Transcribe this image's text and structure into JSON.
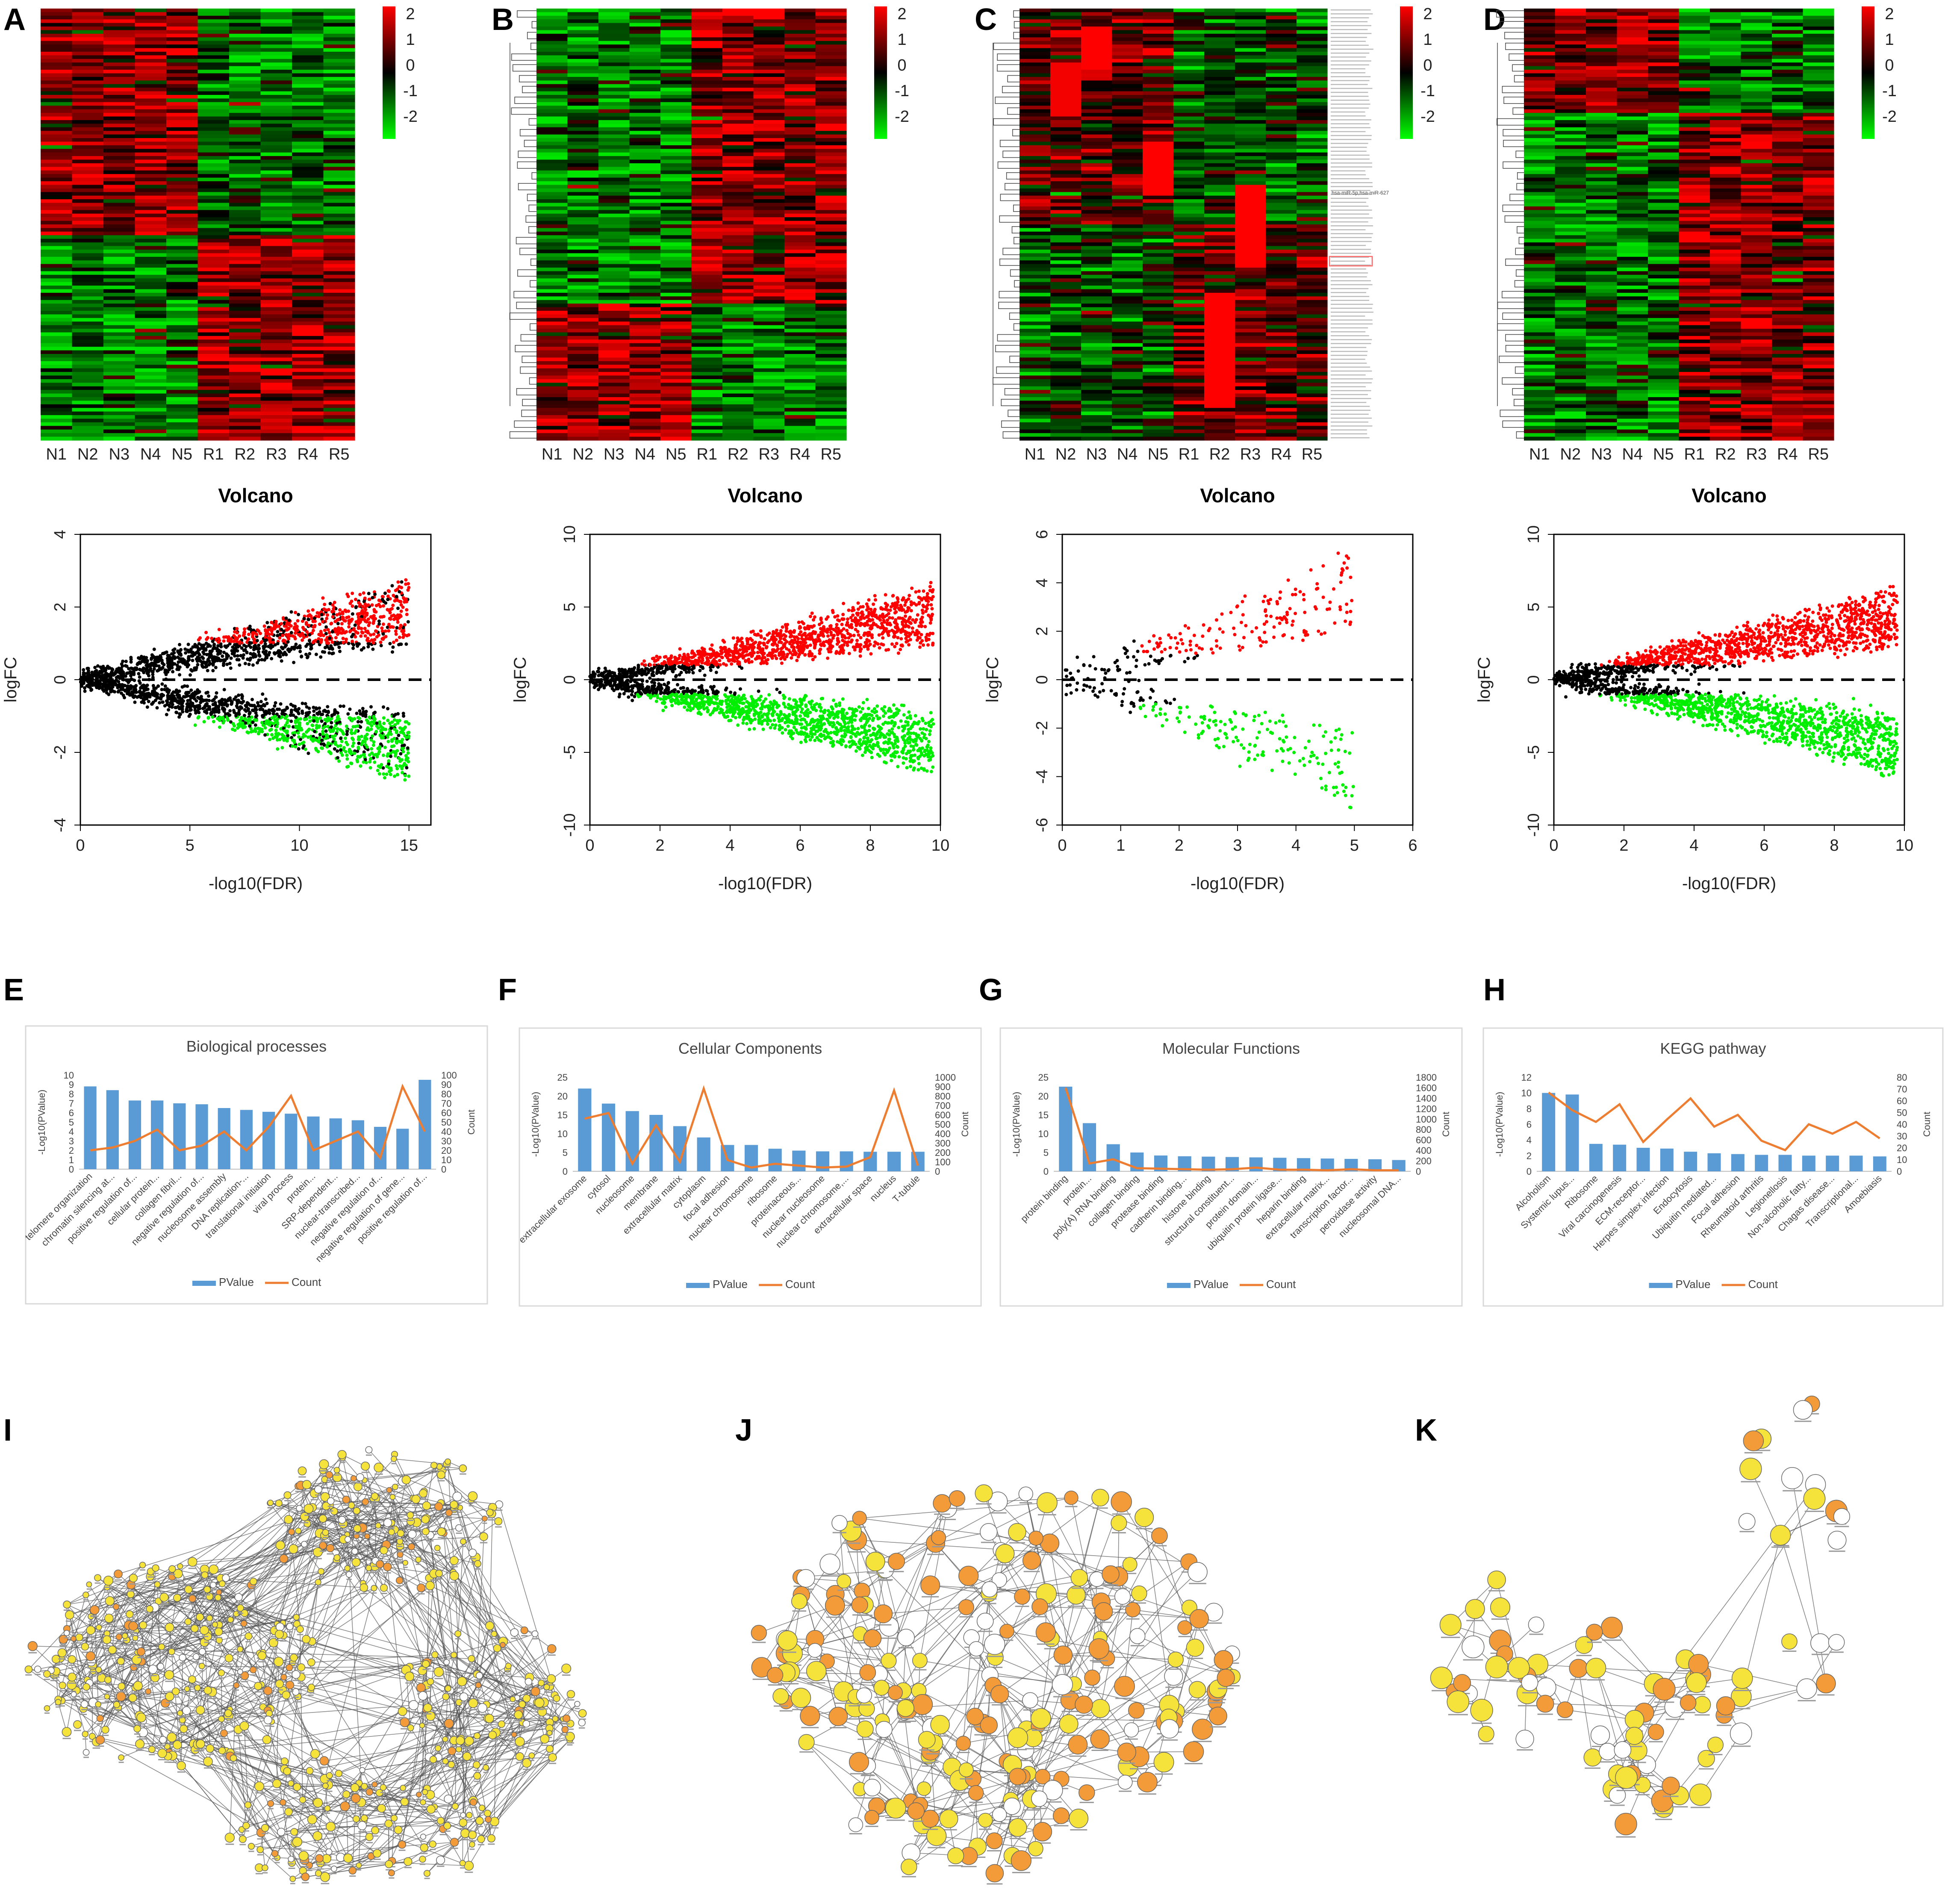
{
  "panels": {
    "heatmaps": [
      {
        "letter": "A",
        "columns": [
          "N1",
          "N2",
          "N3",
          "N4",
          "N5",
          "R1",
          "R2",
          "R3",
          "R4",
          "R5"
        ],
        "scale": [
          "2",
          "1",
          "0",
          "-1",
          "-2"
        ]
      },
      {
        "letter": "B",
        "columns": [
          "N1",
          "N2",
          "N3",
          "N4",
          "N5",
          "R1",
          "R2",
          "R3",
          "R4",
          "R5"
        ],
        "scale": [
          "2",
          "1",
          "0",
          "-1",
          "-2"
        ]
      },
      {
        "letter": "C",
        "columns": [
          "N1",
          "N2",
          "N3",
          "N4",
          "N5",
          "R1",
          "R2",
          "R3",
          "R4",
          "R5"
        ],
        "scale": [
          "2",
          "1",
          "0",
          "-1",
          "-2"
        ],
        "row_label_sample": "hsa-miR-5p,hsa-miR-627"
      },
      {
        "letter": "D",
        "columns": [
          "N1",
          "N2",
          "N3",
          "N4",
          "N5",
          "R1",
          "R2",
          "R3",
          "R4",
          "R5"
        ],
        "scale": [
          "2",
          "1",
          "0",
          "-1",
          "-2"
        ]
      }
    ],
    "networks": [
      {
        "letter": "I"
      },
      {
        "letter": "J"
      },
      {
        "letter": "K"
      }
    ]
  },
  "colors": {
    "up": "#ff0000",
    "down": "#00ee00",
    "ns": "#000000",
    "bar": "#5b9bd5",
    "line": "#ed7d31",
    "heat_hi": "#ff0000",
    "heat_lo": "#00ff00",
    "node_dark": "#f29b38",
    "node_light": "#f5e33b",
    "node_white": "#ffffff"
  },
  "chart_data": [
    {
      "type": "scatter",
      "panel": "volcano-A",
      "title": "Volcano",
      "xlabel": "-log10(FDR)",
      "ylabel": "logFC",
      "xlim": [
        0,
        16
      ],
      "ylim": [
        -4,
        4
      ],
      "xticks": [
        "0",
        "5",
        "10",
        "15"
      ],
      "yticks": [
        "4",
        "2",
        "0",
        "-2",
        "-4"
      ],
      "x_max_points": 15,
      "spread": 3.0
    },
    {
      "type": "scatter",
      "panel": "volcano-B",
      "title": "Volcano",
      "xlabel": "-log10(FDR)",
      "ylabel": "logFC",
      "xlim": [
        0,
        10
      ],
      "ylim": [
        -10,
        10
      ],
      "xticks": [
        "0",
        "2",
        "4",
        "6",
        "8",
        "10"
      ],
      "yticks": [
        "10",
        "5",
        "0",
        "-5",
        "-10"
      ],
      "x_max_points": 9.8,
      "spread": 7.0
    },
    {
      "type": "scatter",
      "panel": "volcano-C",
      "title": "Volcano",
      "xlabel": "-log10(FDR)",
      "ylabel": "logFC",
      "xlim": [
        0,
        6
      ],
      "ylim": [
        -6,
        6
      ],
      "xticks": [
        "0",
        "1",
        "2",
        "3",
        "4",
        "5",
        "6"
      ],
      "yticks": [
        "6",
        "4",
        "2",
        "0",
        "-2",
        "-4",
        "-6"
      ],
      "x_max_points": 5.0,
      "spread": 5.8
    },
    {
      "type": "scatter",
      "panel": "volcano-D",
      "title": "Volcano",
      "xlabel": "-log10(FDR)",
      "ylabel": "logFC",
      "xlim": [
        0,
        10
      ],
      "ylim": [
        -10,
        10
      ],
      "xticks": [
        "0",
        "2",
        "4",
        "6",
        "8",
        "10"
      ],
      "yticks": [
        "10",
        "5",
        "0",
        "-5",
        "-10"
      ],
      "x_max_points": 9.8,
      "spread": 7.0
    },
    {
      "type": "bar",
      "panel": "E",
      "title": "Biological processes",
      "ylabel": "-Log10(PValue)",
      "y2label": "Count",
      "ylim": [
        0,
        10
      ],
      "y2lim": [
        0,
        100
      ],
      "yticks": [
        "10",
        "9",
        "8",
        "7",
        "6",
        "5",
        "4",
        "3",
        "2",
        "1",
        "0"
      ],
      "y2ticks": [
        "100",
        "90",
        "80",
        "70",
        "60",
        "50",
        "40",
        "30",
        "20",
        "10",
        "0"
      ],
      "legend": [
        "PValue",
        "Count"
      ],
      "categories": [
        "telomere organization",
        "chromatin silencing at...",
        "positive regulation of...",
        "cellular protein...",
        "collagen fibril...",
        "negative regulation of...",
        "nucleosome assembly",
        "DNA replication-...",
        "translational initiation",
        "viral process",
        "protein...",
        "SRP-dependent...",
        "nuclear-transcribed...",
        "negative regulation of...",
        "negative regulation of gene...",
        "positive regulation of..."
      ],
      "series": [
        {
          "name": "PValue",
          "values": [
            8.8,
            8.4,
            7.3,
            7.3,
            7.0,
            6.9,
            6.5,
            6.3,
            6.1,
            5.9,
            5.6,
            5.4,
            5.2,
            4.5,
            4.3,
            9.5
          ]
        },
        {
          "name": "Count",
          "values": [
            20,
            23,
            30,
            42,
            20,
            25,
            40,
            20,
            45,
            78,
            20,
            30,
            40,
            12,
            88,
            40
          ]
        }
      ]
    },
    {
      "type": "bar",
      "panel": "F",
      "title": "Cellular Components",
      "ylabel": "-Log10(PValue)",
      "y2label": "Count",
      "ylim": [
        0,
        25
      ],
      "y2lim": [
        0,
        1000
      ],
      "yticks": [
        "25",
        "20",
        "15",
        "10",
        "5",
        "0"
      ],
      "y2ticks": [
        "1000",
        "900",
        "800",
        "700",
        "600",
        "500",
        "400",
        "300",
        "200",
        "100",
        "0"
      ],
      "legend": [
        "PValue",
        "Count"
      ],
      "categories": [
        "extracellular exosome",
        "cytosol",
        "nucleosome",
        "membrane",
        "extracellular matrix",
        "cytoplasm",
        "focal adhesion",
        "nuclear chromosome",
        "ribosome",
        "proteinaceous...",
        "nuclear nucleosome",
        "nuclear chromosome,...",
        "extracellular space",
        "nucleus",
        "T-tubule"
      ],
      "series": [
        {
          "name": "PValue",
          "values": [
            22,
            18,
            16,
            15,
            12,
            9,
            7,
            7,
            6,
            5.5,
            5.3,
            5.3,
            5.2,
            5.2,
            5.2
          ]
        },
        {
          "name": "Count",
          "values": [
            560,
            620,
            80,
            490,
            100,
            880,
            120,
            40,
            80,
            60,
            40,
            50,
            150,
            860,
            60
          ]
        }
      ]
    },
    {
      "type": "bar",
      "panel": "G",
      "title": "Molecular Functions",
      "ylabel": "-Log10(PValue)",
      "y2label": "Count",
      "ylim": [
        0,
        25
      ],
      "y2lim": [
        0,
        1800
      ],
      "yticks": [
        "25",
        "20",
        "15",
        "10",
        "5",
        "0"
      ],
      "y2ticks": [
        "1800",
        "1600",
        "1400",
        "1200",
        "1000",
        "800",
        "600",
        "400",
        "200",
        "0"
      ],
      "legend": [
        "PValue",
        "Count"
      ],
      "categories": [
        "protein binding",
        "protein...",
        "poly(A) RNA binding",
        "collagen binding",
        "protease binding",
        "cadherin binding...",
        "histone binding",
        "structural constituent...",
        "protein domain...",
        "ubiquitin protein ligase...",
        "heparin binding",
        "extracellular matrix...",
        "transcription factor...",
        "peroxidase activity",
        "nucleosomal DNA..."
      ],
      "series": [
        {
          "name": "PValue",
          "values": [
            22.5,
            12.8,
            7.2,
            5,
            4.2,
            4,
            3.9,
            3.8,
            3.7,
            3.6,
            3.5,
            3.4,
            3.3,
            3.2,
            3
          ]
        },
        {
          "name": "Count",
          "values": [
            1600,
            150,
            230,
            60,
            50,
            40,
            30,
            40,
            70,
            30,
            30,
            20,
            40,
            20,
            20
          ]
        }
      ]
    },
    {
      "type": "bar",
      "panel": "H",
      "title": "KEGG pathway",
      "ylabel": "-Log10(PValue)",
      "y2label": "Count",
      "ylim": [
        0,
        12
      ],
      "y2lim": [
        0,
        80
      ],
      "yticks": [
        "12",
        "10",
        "8",
        "6",
        "4",
        "2",
        "0"
      ],
      "y2ticks": [
        "80",
        "70",
        "60",
        "50",
        "40",
        "30",
        "20",
        "10",
        "0"
      ],
      "legend": [
        "PValue",
        "Count"
      ],
      "categories": [
        "Alcoholism",
        "Systemic lupus...",
        "Ribosome",
        "Viral carcinogenesis",
        "ECM-receptor...",
        "Herpes simplex infection",
        "Endocytosis",
        "Ubiquitin mediated...",
        "Focal adhesion",
        "Rheumatoid arthritis",
        "Legionellosis",
        "Non-alcoholic fatty...",
        "Chagas disease...",
        "Transcriptional...",
        "Amoebiasis"
      ],
      "series": [
        {
          "name": "PValue",
          "values": [
            10,
            9.8,
            3.5,
            3.4,
            3,
            2.9,
            2.5,
            2.3,
            2.2,
            2.1,
            2.1,
            2,
            2,
            2,
            1.9
          ]
        },
        {
          "name": "Count",
          "values": [
            67,
            52,
            42,
            57,
            25,
            44,
            62,
            38,
            48,
            26,
            18,
            40,
            32,
            42,
            28
          ]
        }
      ]
    }
  ]
}
